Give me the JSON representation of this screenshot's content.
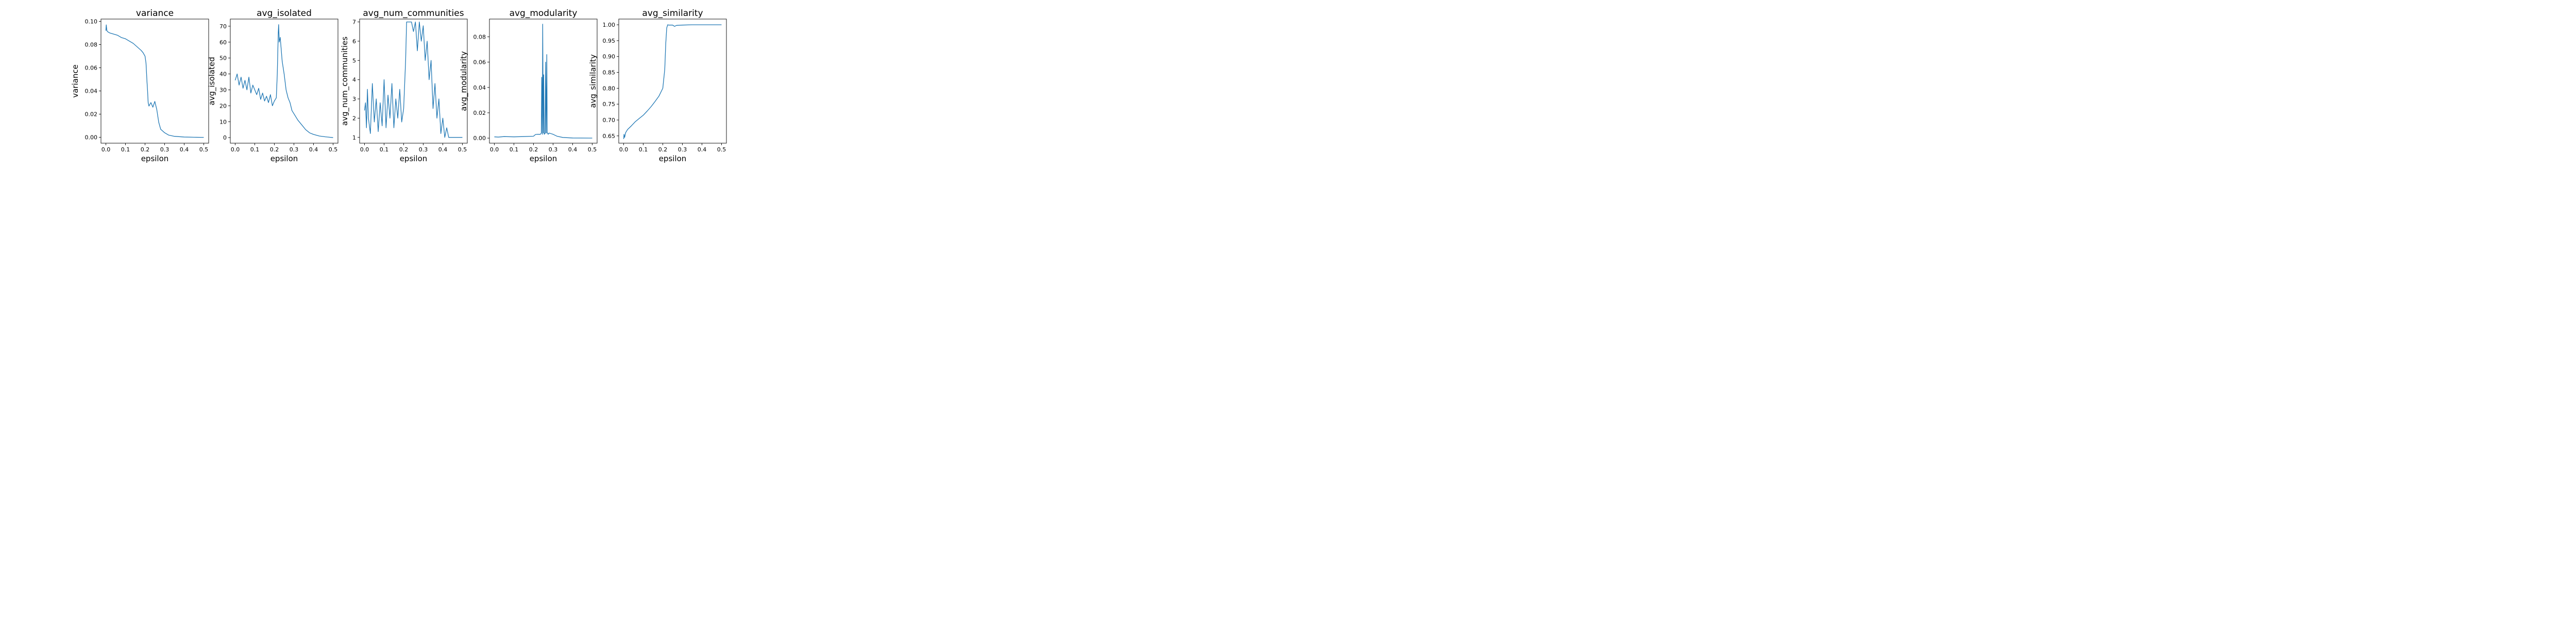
{
  "figure": {
    "line_color": "#1f77b4"
  },
  "chart_data": [
    {
      "type": "line",
      "title": "variance",
      "xlabel": "epsilon",
      "ylabel": "variance",
      "xlim": [
        -0.025,
        0.525
      ],
      "ylim": [
        -0.005,
        0.102
      ],
      "xticks": [
        0.0,
        0.1,
        0.2,
        0.3,
        0.4,
        0.5
      ],
      "xtick_labels": [
        "0.0",
        "0.1",
        "0.2",
        "0.3",
        "0.4",
        "0.5"
      ],
      "yticks": [
        0.0,
        0.02,
        0.04,
        0.06,
        0.08,
        0.1
      ],
      "ytick_labels": [
        "0.00",
        "0.02",
        "0.04",
        "0.06",
        "0.08",
        "0.10"
      ],
      "grid": false,
      "series": [
        {
          "x": [
            0.0,
            0.002,
            0.005,
            0.01,
            0.02,
            0.04,
            0.06,
            0.08,
            0.1,
            0.12,
            0.14,
            0.16,
            0.18,
            0.19,
            0.2,
            0.205,
            0.21,
            0.213,
            0.216,
            0.22,
            0.23,
            0.24,
            0.25,
            0.26,
            0.27,
            0.28,
            0.3,
            0.32,
            0.35,
            0.4,
            0.45,
            0.5
          ],
          "y": [
            0.092,
            0.097,
            0.092,
            0.091,
            0.09,
            0.089,
            0.088,
            0.086,
            0.085,
            0.083,
            0.081,
            0.078,
            0.075,
            0.073,
            0.07,
            0.064,
            0.048,
            0.04,
            0.03,
            0.027,
            0.03,
            0.026,
            0.031,
            0.024,
            0.013,
            0.007,
            0.004,
            0.002,
            0.0009,
            0.0003,
            0.0001,
            0.0
          ]
        }
      ]
    },
    {
      "type": "line",
      "title": "avg_isolated",
      "xlabel": "epsilon",
      "ylabel": "avg_isolated",
      "xlim": [
        -0.025,
        0.525
      ],
      "ylim": [
        -3.5,
        74.5
      ],
      "xticks": [
        0.0,
        0.1,
        0.2,
        0.3,
        0.4,
        0.5
      ],
      "xtick_labels": [
        "0.0",
        "0.1",
        "0.2",
        "0.3",
        "0.4",
        "0.5"
      ],
      "yticks": [
        0,
        10,
        20,
        30,
        40,
        50,
        60,
        70
      ],
      "ytick_labels": [
        "0",
        "10",
        "20",
        "30",
        "40",
        "50",
        "60",
        "70"
      ],
      "grid": false,
      "series": [
        {
          "x": [
            0.0,
            0.01,
            0.02,
            0.03,
            0.04,
            0.05,
            0.06,
            0.07,
            0.08,
            0.09,
            0.1,
            0.11,
            0.12,
            0.13,
            0.14,
            0.15,
            0.16,
            0.17,
            0.18,
            0.19,
            0.2,
            0.21,
            0.215,
            0.22,
            0.222,
            0.225,
            0.23,
            0.24,
            0.25,
            0.26,
            0.27,
            0.28,
            0.29,
            0.3,
            0.32,
            0.34,
            0.36,
            0.38,
            0.4,
            0.43,
            0.46,
            0.5
          ],
          "y": [
            36,
            40,
            33,
            38,
            31,
            36,
            30,
            38,
            28,
            33,
            30,
            27,
            31,
            24,
            28,
            23,
            26,
            22,
            27,
            20,
            23,
            25,
            40,
            66,
            71,
            60,
            63,
            48,
            40,
            30,
            25,
            22,
            17,
            15,
            11,
            8,
            5,
            3,
            2,
            1,
            0.5,
            0
          ]
        }
      ]
    },
    {
      "type": "line",
      "title": "avg_num_communities",
      "xlabel": "epsilon",
      "ylabel": "avg_num_communities",
      "xlim": [
        -0.025,
        0.525
      ],
      "ylim": [
        0.7,
        7.15
      ],
      "xticks": [
        0.0,
        0.1,
        0.2,
        0.3,
        0.4,
        0.5
      ],
      "xtick_labels": [
        "0.0",
        "0.1",
        "0.2",
        "0.3",
        "0.4",
        "0.5"
      ],
      "yticks": [
        1,
        2,
        3,
        4,
        5,
        6,
        7
      ],
      "ytick_labels": [
        "1",
        "2",
        "3",
        "4",
        "5",
        "6",
        "7"
      ],
      "grid": false,
      "series": [
        {
          "x": [
            0.0,
            0.005,
            0.01,
            0.015,
            0.02,
            0.03,
            0.04,
            0.05,
            0.06,
            0.07,
            0.08,
            0.09,
            0.1,
            0.11,
            0.12,
            0.13,
            0.14,
            0.15,
            0.16,
            0.17,
            0.18,
            0.19,
            0.2,
            0.21,
            0.215,
            0.22,
            0.24,
            0.25,
            0.26,
            0.27,
            0.28,
            0.29,
            0.3,
            0.31,
            0.32,
            0.33,
            0.34,
            0.35,
            0.36,
            0.37,
            0.38,
            0.39,
            0.4,
            0.41,
            0.42,
            0.43,
            0.45,
            0.5
          ],
          "y": [
            2.4,
            2.8,
            1.5,
            3.5,
            2.0,
            1.2,
            3.8,
            1.8,
            3.0,
            1.3,
            2.8,
            1.6,
            4.0,
            1.5,
            3.2,
            2.0,
            3.8,
            1.5,
            3.0,
            2.0,
            3.5,
            1.8,
            2.5,
            5.0,
            7.0,
            7.0,
            7.0,
            6.5,
            7.0,
            5.5,
            7.0,
            6.0,
            6.8,
            5.0,
            6.0,
            4.0,
            5.0,
            2.5,
            3.8,
            2.0,
            3.0,
            1.2,
            2.0,
            1.0,
            1.5,
            1.0,
            1.0,
            1.0
          ]
        }
      ]
    },
    {
      "type": "line",
      "title": "avg_modularity",
      "xlabel": "epsilon",
      "ylabel": "avg_modularity",
      "xlim": [
        -0.025,
        0.525
      ],
      "ylim": [
        -0.004,
        0.094
      ],
      "xticks": [
        0.0,
        0.1,
        0.2,
        0.3,
        0.4,
        0.5
      ],
      "xtick_labels": [
        "0.0",
        "0.1",
        "0.2",
        "0.3",
        "0.4",
        "0.5"
      ],
      "yticks": [
        0.0,
        0.02,
        0.04,
        0.06,
        0.08
      ],
      "ytick_labels": [
        "0.00",
        "0.02",
        "0.04",
        "0.06",
        "0.08"
      ],
      "grid": false,
      "series": [
        {
          "x": [
            0.0,
            0.02,
            0.05,
            0.1,
            0.15,
            0.2,
            0.21,
            0.22,
            0.235,
            0.24,
            0.242,
            0.245,
            0.247,
            0.25,
            0.252,
            0.255,
            0.26,
            0.262,
            0.265,
            0.268,
            0.27,
            0.272,
            0.275,
            0.28,
            0.29,
            0.3,
            0.32,
            0.35,
            0.4,
            0.5
          ],
          "y": [
            0.001,
            0.0008,
            0.0012,
            0.001,
            0.0012,
            0.0015,
            0.0028,
            0.003,
            0.003,
            0.004,
            0.048,
            0.003,
            0.09,
            0.004,
            0.05,
            0.003,
            0.004,
            0.06,
            0.004,
            0.066,
            0.004,
            0.004,
            0.003,
            0.004,
            0.0035,
            0.003,
            0.0015,
            0.0005,
            0.0001,
            0.0
          ]
        }
      ]
    },
    {
      "type": "line",
      "title": "avg_similarity",
      "xlabel": "epsilon",
      "ylabel": "avg_similarity",
      "xlim": [
        -0.025,
        0.525
      ],
      "ylim": [
        0.627,
        1.018
      ],
      "xticks": [
        0.0,
        0.1,
        0.2,
        0.3,
        0.4,
        0.5
      ],
      "xtick_labels": [
        "0.0",
        "0.1",
        "0.2",
        "0.3",
        "0.4",
        "0.5"
      ],
      "yticks": [
        0.65,
        0.7,
        0.75,
        0.8,
        0.85,
        0.9,
        0.95,
        1.0
      ],
      "ytick_labels": [
        "0.65",
        "0.70",
        "0.75",
        "0.80",
        "0.85",
        "0.90",
        "0.95",
        "1.00"
      ],
      "grid": false,
      "series": [
        {
          "x": [
            0.0,
            0.002,
            0.005,
            0.01,
            0.02,
            0.04,
            0.06,
            0.08,
            0.1,
            0.12,
            0.14,
            0.16,
            0.18,
            0.2,
            0.21,
            0.215,
            0.22,
            0.225,
            0.23,
            0.25,
            0.26,
            0.27,
            0.3,
            0.35,
            0.4,
            0.5
          ],
          "y": [
            0.64,
            0.655,
            0.645,
            0.66,
            0.67,
            0.682,
            0.695,
            0.705,
            0.715,
            0.728,
            0.742,
            0.758,
            0.775,
            0.8,
            0.86,
            0.94,
            0.99,
            1.0,
            0.999,
            0.999,
            0.995,
            0.998,
            0.999,
            1.0,
            1.0,
            1.0
          ]
        }
      ]
    }
  ]
}
